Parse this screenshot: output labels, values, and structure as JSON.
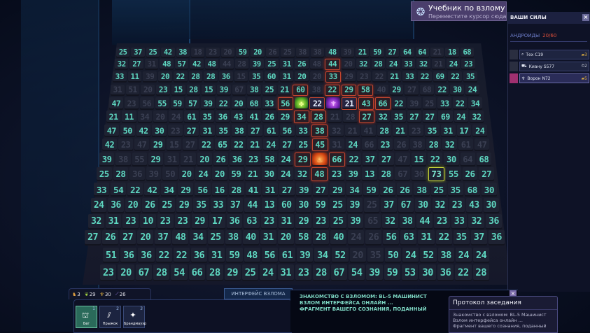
{
  "tutorial": {
    "title": "Учебник по взлому",
    "subtitle": "Переместите курсор сюда!",
    "icon": "hack-tutorial-icon"
  },
  "forces": {
    "title": "ВАШИ СИЛЫ",
    "close": "×",
    "androids_label": "АНДРОИДЫ",
    "androids_count": "20/60",
    "units": [
      {
        "name": "Тех С19",
        "stat": "▰3",
        "active": false
      },
      {
        "name": "Киану S577",
        "stat": "⏱2",
        "active": false
      },
      {
        "name": "Ворон N72",
        "stat": "▰5",
        "active": true
      }
    ]
  },
  "resources": [
    {
      "icon": "android-icon",
      "glyph": "♞",
      "value": "3",
      "color": "#e0a040"
    },
    {
      "icon": "leaf-icon",
      "glyph": "❦",
      "value": "29",
      "color": "#a0d040"
    },
    {
      "icon": "wings-icon",
      "glyph": "♆",
      "value": "30",
      "color": "#e0b040"
    },
    {
      "icon": "blade-icon",
      "glyph": "⟋",
      "value": "26",
      "color": "#a080f0"
    }
  ],
  "interface_tab": "ИНТЕРФЕЙС ВЗЛОМА",
  "abilities": [
    {
      "key": "1",
      "label": "Бег",
      "glyph": "⛫",
      "selected": true
    },
    {
      "key": "2",
      "label": "Прыжок",
      "glyph": "⫽",
      "selected": false
    },
    {
      "key": "3",
      "label": "Брандмауэр",
      "glyph": "✦",
      "selected": false
    }
  ],
  "log_lines": [
    "ЗНАКОМСТВО С ВЗЛОМОМ:  BL-5 МАШИНИСТ",
    "ВЗЛОМ ИНТЕРФЕЙСА ОНЛАЙН ...",
    "ФРАГМЕНТ ВАШЕГО СОЗНАНИЯ, ПОДАННЫЙ"
  ],
  "log_close": "×",
  "protocol": {
    "title": "Протокол заседания",
    "lines": [
      "Знакомство с взломом:  BL-5 Машинист",
      "Взлом интерфейса онлайн ...",
      "Фрагмент вашего сознания, поданный"
    ]
  },
  "grid": [
    [
      "25",
      "37",
      "25",
      "42",
      "38",
      {
        "v": "18",
        "s": "dim"
      },
      {
        "v": "23",
        "s": "dim"
      },
      {
        "v": "20",
        "s": "dim"
      },
      "59",
      "20",
      {
        "v": "26",
        "s": "dim"
      },
      {
        "v": "25",
        "s": "dim"
      },
      {
        "v": "38",
        "s": "dim"
      },
      {
        "v": "38",
        "s": "dim"
      },
      "48",
      {
        "v": "39",
        "s": "dim"
      },
      "21",
      "59",
      "27",
      "64",
      "64",
      {
        "v": "21",
        "s": "dim"
      },
      "18",
      "68"
    ],
    [
      "32",
      "27",
      {
        "v": "31",
        "s": "dim"
      },
      "48",
      "57",
      "42",
      "48",
      {
        "v": "44",
        "s": "dim"
      },
      {
        "v": "28",
        "s": "dim"
      },
      "39",
      "25",
      "31",
      "26",
      {
        "v": "48",
        "s": "dim"
      },
      {
        "v": "44",
        "s": "red"
      },
      {
        "v": "20",
        "s": "dim"
      },
      "32",
      "28",
      "24",
      "33",
      "32",
      {
        "v": "21",
        "s": "dim"
      },
      "24",
      "23"
    ],
    [
      "33",
      "11",
      {
        "v": "39",
        "s": "dim"
      },
      "20",
      "22",
      "28",
      "28",
      "36",
      {
        "v": "15",
        "s": "dim"
      },
      "35",
      "60",
      "31",
      "20",
      {
        "v": "20",
        "s": "dim"
      },
      {
        "v": "33",
        "s": "red"
      },
      {
        "v": "29",
        "s": "dim"
      },
      {
        "v": "23",
        "s": "dim"
      },
      {
        "v": "22",
        "s": "dim"
      },
      "21",
      "33",
      "22",
      "69",
      "22",
      "35"
    ],
    [
      {
        "v": "31",
        "s": "dim"
      },
      {
        "v": "51",
        "s": "dim"
      },
      {
        "v": "20",
        "s": "dim"
      },
      "23",
      "15",
      "28",
      "15",
      "39",
      {
        "v": "67",
        "s": "dim"
      },
      "38",
      "25",
      "21",
      {
        "v": "60",
        "s": "red"
      },
      {
        "v": "38",
        "s": "dim"
      },
      {
        "v": "22",
        "s": "red"
      },
      {
        "v": "29",
        "s": "red"
      },
      {
        "v": "58",
        "s": "red"
      },
      {
        "v": "40",
        "s": "dim"
      },
      "29",
      {
        "v": "27",
        "s": "dim"
      },
      {
        "v": "68",
        "s": "dim"
      },
      "22",
      "30",
      "24"
    ],
    [
      "47",
      {
        "v": "23",
        "s": "dim"
      },
      {
        "v": "56",
        "s": "dim"
      },
      "55",
      "59",
      "57",
      "39",
      "22",
      "20",
      "68",
      "33",
      {
        "v": "56",
        "s": "red"
      },
      {
        "v": "✤",
        "s": "icon-green",
        "icon": "green-virus-icon"
      },
      {
        "v": "22",
        "s": "sel"
      },
      {
        "v": "♆",
        "s": "icon-purple",
        "icon": "purple-android-icon"
      },
      {
        "v": "21",
        "s": "sel"
      },
      {
        "v": "43",
        "s": "red"
      },
      {
        "v": "66",
        "s": "red"
      },
      "22",
      {
        "v": "39",
        "s": "dim"
      },
      {
        "v": "25",
        "s": "dim"
      },
      "33",
      "22",
      "34"
    ],
    [
      "21",
      "11",
      {
        "v": "34",
        "s": "dim"
      },
      {
        "v": "20",
        "s": "dim"
      },
      {
        "v": "24",
        "s": "dim"
      },
      "61",
      "35",
      "36",
      "43",
      "41",
      "26",
      "29",
      {
        "v": "34",
        "s": "red"
      },
      {
        "v": "28",
        "s": "red"
      },
      {
        "v": "21",
        "s": "dim"
      },
      {
        "v": "28",
        "s": "dim"
      },
      {
        "v": "27",
        "s": "red"
      },
      "32",
      "35",
      "27",
      "27",
      "69",
      "24",
      "32"
    ],
    [
      "47",
      "50",
      "42",
      "30",
      {
        "v": "23",
        "s": "dim"
      },
      "27",
      "31",
      "35",
      "38",
      "27",
      "61",
      "56",
      "33",
      {
        "v": "38",
        "s": "red"
      },
      {
        "v": "32",
        "s": "dim"
      },
      {
        "v": "21",
        "s": "dim"
      },
      {
        "v": "41",
        "s": "dim"
      },
      "28",
      "21",
      {
        "v": "23",
        "s": "dim"
      },
      "35",
      "31",
      "17",
      "24"
    ],
    [
      "42",
      {
        "v": "23",
        "s": "dim"
      },
      {
        "v": "47",
        "s": "dim"
      },
      "29",
      {
        "v": "15",
        "s": "dim"
      },
      {
        "v": "27",
        "s": "dim"
      },
      "22",
      "65",
      "22",
      "21",
      "24",
      "27",
      "25",
      {
        "v": "45",
        "s": "red"
      },
      {
        "v": "31",
        "s": "dim"
      },
      "24",
      {
        "v": "66",
        "s": "dim"
      },
      "23",
      {
        "v": "26",
        "s": "dim"
      },
      {
        "v": "38",
        "s": "dim"
      },
      "28",
      "32",
      {
        "v": "61",
        "s": "dim"
      },
      {
        "v": "47",
        "s": "dim"
      }
    ],
    [
      "39",
      {
        "v": "38",
        "s": "dim"
      },
      {
        "v": "55",
        "s": "dim"
      },
      "29",
      {
        "v": "31",
        "s": "dim"
      },
      {
        "v": "21",
        "s": "dim"
      },
      "20",
      "26",
      "36",
      "23",
      "58",
      "24",
      {
        "v": "29",
        "s": "red"
      },
      {
        "v": "♨",
        "s": "icon-fire",
        "icon": "fire-android-icon"
      },
      {
        "v": "66",
        "s": "red"
      },
      "22",
      "37",
      "27",
      {
        "v": "47",
        "s": "dim"
      },
      "15",
      "22",
      "30",
      {
        "v": "64",
        "s": "dim"
      },
      "68"
    ],
    [
      "25",
      "28",
      {
        "v": "36",
        "s": "dim"
      },
      {
        "v": "39",
        "s": "dim"
      },
      {
        "v": "50",
        "s": "dim"
      },
      "20",
      "24",
      "20",
      "59",
      "21",
      "30",
      "24",
      "32",
      {
        "v": "48",
        "s": "red"
      },
      "23",
      "39",
      "13",
      "28",
      {
        "v": "67",
        "s": "dim"
      },
      {
        "v": "30",
        "s": "dim"
      },
      {
        "v": "73",
        "s": "yellow"
      },
      "55",
      "26",
      "27"
    ],
    [
      "33",
      "54",
      "22",
      "42",
      "34",
      "29",
      "56",
      "16",
      "28",
      "41",
      "31",
      "27",
      "39",
      "27",
      "29",
      "34",
      "59",
      "26",
      "26",
      "38",
      "25",
      "35",
      "68",
      "30"
    ],
    [
      "24",
      "36",
      "20",
      "26",
      "25",
      "29",
      "35",
      "33",
      "37",
      "44",
      "13",
      "60",
      "30",
      "59",
      "25",
      "39",
      {
        "v": "25",
        "s": "dim"
      },
      "37",
      "67",
      "30",
      "32",
      "23",
      "43",
      "30"
    ],
    [
      "32",
      "31",
      "23",
      "10",
      "23",
      "23",
      "29",
      "17",
      "36",
      "63",
      "23",
      "31",
      "29",
      "23",
      "25",
      "39",
      {
        "v": "65",
        "s": "dim"
      },
      "32",
      "38",
      "44",
      "23",
      "33",
      "32",
      "36"
    ],
    [
      "27",
      "26",
      "27",
      "20",
      "37",
      "48",
      "34",
      "25",
      "38",
      "40",
      "31",
      "20",
      "58",
      "28",
      "40",
      {
        "v": "24",
        "s": "dim"
      },
      {
        "v": "26",
        "s": "dim"
      },
      "56",
      "63",
      "31",
      "22",
      "35",
      "37",
      "36"
    ],
    [
      "51",
      "36",
      "36",
      "22",
      "22",
      "36",
      "31",
      "59",
      "48",
      "56",
      "61",
      "39",
      "34",
      "52",
      {
        "v": "20",
        "s": "dim"
      },
      {
        "v": "35",
        "s": "dim"
      },
      "50",
      "24",
      "52",
      "38",
      "24",
      "24"
    ],
    [
      "23",
      "20",
      "67",
      "28",
      "54",
      "66",
      "28",
      "29",
      "25",
      "24",
      "31",
      "23",
      "28",
      "67",
      "54",
      "39",
      "59",
      "53",
      "30",
      "36",
      "22",
      "28"
    ]
  ]
}
